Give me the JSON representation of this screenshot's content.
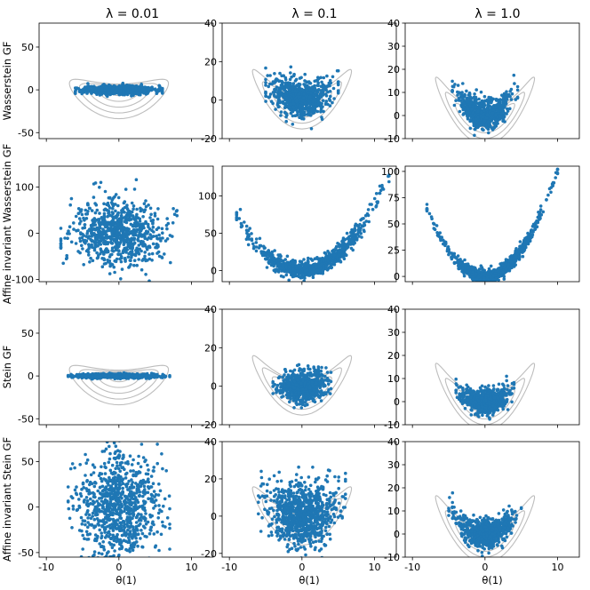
{
  "colors": {
    "points": "#1f77b4",
    "contours": "#bdbdbd"
  },
  "figure": {
    "column_titles": [
      "λ = 0.01",
      "λ = 0.1",
      "λ = 1.0"
    ],
    "row_labels": [
      "Wasserstein GF",
      "Affine invariant Wasserstein GF",
      "Stein GF",
      "Affine invariant Stein GF"
    ],
    "xlabel": "θ(1)",
    "x_ticks": [
      "-10",
      "0",
      "10"
    ]
  },
  "chart_data": [
    {
      "type": "scatter",
      "row": 0,
      "col": 0,
      "title": "λ = 0.01",
      "ylabel": "Wasserstein GF",
      "xlabel": "",
      "xlim": [
        -11,
        13
      ],
      "ylim": [
        -57,
        78
      ],
      "yticks": [
        -50,
        0,
        50
      ],
      "xticks": [
        -10,
        0,
        10
      ],
      "contours": true,
      "points": {
        "n": 700,
        "x_range": [
          -6,
          6
        ],
        "y_spread": 5,
        "shape": "band",
        "seed": 11
      }
    },
    {
      "type": "scatter",
      "row": 0,
      "col": 1,
      "title": "λ = 0.1",
      "ylabel": "",
      "xlabel": "",
      "xlim": [
        -11,
        13
      ],
      "ylim": [
        -20,
        40
      ],
      "yticks": [
        -20,
        0,
        20,
        40
      ],
      "xticks": [
        -10,
        0,
        10
      ],
      "contours": true,
      "points": {
        "n": 700,
        "x_range": [
          -5,
          5
        ],
        "y_spread": 5,
        "shape": "banana",
        "curv": 0.35,
        "seed": 12
      }
    },
    {
      "type": "scatter",
      "row": 0,
      "col": 2,
      "title": "λ = 1.0",
      "ylabel": "",
      "xlabel": "",
      "xlim": [
        -11,
        13
      ],
      "ylim": [
        -10,
        40
      ],
      "yticks": [
        -10,
        0,
        10,
        20,
        30,
        40
      ],
      "xticks": [
        -10,
        0,
        10
      ],
      "contours": true,
      "points": {
        "n": 700,
        "x_range": [
          -4.5,
          4.5
        ],
        "y_spread": 3,
        "shape": "banana",
        "curv": 0.6,
        "seed": 13
      }
    },
    {
      "type": "scatter",
      "row": 1,
      "col": 0,
      "title": "",
      "ylabel": "Affine invariant Wasserstein GF",
      "xlabel": "",
      "xlim": [
        -11,
        13
      ],
      "ylim": [
        -105,
        145
      ],
      "yticks": [
        -100,
        0,
        100
      ],
      "xticks": [
        -10,
        0,
        10
      ],
      "contours": false,
      "points": {
        "n": 800,
        "x_range": [
          -8,
          8
        ],
        "y_spread": 35,
        "shape": "blob",
        "seed": 21
      }
    },
    {
      "type": "scatter",
      "row": 1,
      "col": 1,
      "title": "",
      "ylabel": "",
      "xlabel": "",
      "xlim": [
        -11,
        13
      ],
      "ylim": [
        -15,
        140
      ],
      "yticks": [
        0,
        50,
        100
      ],
      "xticks": [
        -10,
        0,
        10
      ],
      "contours": false,
      "points": {
        "n": 800,
        "x_range": [
          -9,
          12
        ],
        "y_spread": 6,
        "shape": "banana",
        "curv": 0.9,
        "seed": 22
      }
    },
    {
      "type": "scatter",
      "row": 1,
      "col": 2,
      "title": "",
      "ylabel": "",
      "xlabel": "",
      "xlim": [
        -11,
        13
      ],
      "ylim": [
        -5,
        105
      ],
      "yticks": [
        0,
        25,
        50,
        75,
        100
      ],
      "xticks": [
        -10,
        0,
        10
      ],
      "contours": false,
      "points": {
        "n": 800,
        "x_range": [
          -8,
          10
        ],
        "y_spread": 3,
        "shape": "banana",
        "curv": 1.0,
        "seed": 23
      }
    },
    {
      "type": "scatter",
      "row": 2,
      "col": 0,
      "title": "",
      "ylabel": "Stein GF",
      "xlabel": "",
      "xlim": [
        -11,
        13
      ],
      "ylim": [
        -57,
        78
      ],
      "yticks": [
        -50,
        0,
        50
      ],
      "xticks": [
        -10,
        0,
        10
      ],
      "contours": true,
      "points": {
        "n": 700,
        "x_range": [
          -7,
          7
        ],
        "y_spread": 2.5,
        "shape": "band",
        "seed": 31
      }
    },
    {
      "type": "scatter",
      "row": 2,
      "col": 1,
      "title": "",
      "ylabel": "",
      "xlabel": "",
      "xlim": [
        -11,
        13
      ],
      "ylim": [
        -20,
        40
      ],
      "yticks": [
        -20,
        0,
        20,
        40
      ],
      "xticks": [
        -10,
        0,
        10
      ],
      "contours": true,
      "points": {
        "n": 700,
        "x_range": [
          -4,
          4
        ],
        "y_spread": 4,
        "shape": "blob",
        "seed": 32
      }
    },
    {
      "type": "scatter",
      "row": 2,
      "col": 2,
      "title": "",
      "ylabel": "",
      "xlabel": "",
      "xlim": [
        -11,
        13
      ],
      "ylim": [
        -10,
        40
      ],
      "yticks": [
        -10,
        0,
        10,
        20,
        30,
        40
      ],
      "xticks": [
        -10,
        0,
        10
      ],
      "contours": true,
      "points": {
        "n": 700,
        "x_range": [
          -4,
          4
        ],
        "y_spread": 2.5,
        "shape": "banana",
        "curv": 0.3,
        "seed": 33
      }
    },
    {
      "type": "scatter",
      "row": 3,
      "col": 0,
      "title": "",
      "ylabel": "Affine invariant Stein GF",
      "xlabel": "θ(1)",
      "xlim": [
        -11,
        13
      ],
      "ylim": [
        -55,
        72
      ],
      "yticks": [
        -50,
        0,
        50
      ],
      "xticks": [
        -10,
        0,
        10
      ],
      "contours": false,
      "points": {
        "n": 900,
        "x_range": [
          -7,
          7
        ],
        "y_spread": 30,
        "shape": "blob",
        "seed": 41
      }
    },
    {
      "type": "scatter",
      "row": 3,
      "col": 1,
      "title": "",
      "ylabel": "",
      "xlabel": "θ(1)",
      "xlim": [
        -11,
        13
      ],
      "ylim": [
        -22,
        40
      ],
      "yticks": [
        -20,
        0,
        20,
        40
      ],
      "xticks": [
        -10,
        0,
        10
      ],
      "contours": true,
      "points": {
        "n": 900,
        "x_range": [
          -6,
          6
        ],
        "y_spread": 9,
        "shape": "banana",
        "curv": 0.25,
        "seed": 42
      }
    },
    {
      "type": "scatter",
      "row": 3,
      "col": 2,
      "title": "",
      "ylabel": "",
      "xlabel": "θ(1)",
      "xlim": [
        -11,
        13
      ],
      "ylim": [
        -10,
        40
      ],
      "yticks": [
        -10,
        0,
        10,
        20,
        30,
        40
      ],
      "xticks": [
        -10,
        0,
        10
      ],
      "contours": true,
      "points": {
        "n": 700,
        "x_range": [
          -5,
          5
        ],
        "y_spread": 3,
        "shape": "banana",
        "curv": 0.45,
        "seed": 43
      }
    }
  ]
}
